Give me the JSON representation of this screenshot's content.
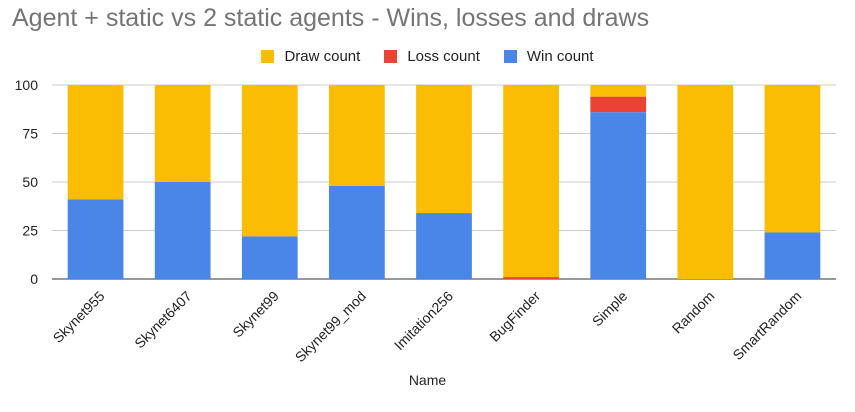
{
  "chart_data": {
    "type": "bar",
    "stacked": true,
    "title": "Agent + static vs 2 static agents - Wins, losses and draws",
    "xlabel": "Name",
    "ylabel": "",
    "ylim": [
      0,
      100
    ],
    "yticks": [
      0,
      25,
      50,
      75,
      100
    ],
    "categories": [
      "Skynet955",
      "Skynet6407",
      "Skynet99",
      "Skynet99_mod",
      "Imitation256",
      "BugFinder",
      "Simple",
      "Random",
      "SmartRandom"
    ],
    "series": [
      {
        "name": "Win count",
        "color": "#4a86e8",
        "values": [
          41,
          50,
          22,
          48,
          34,
          0,
          86,
          0,
          24
        ]
      },
      {
        "name": "Loss count",
        "color": "#ea4335",
        "values": [
          0,
          0,
          0,
          0,
          0,
          1,
          8,
          0,
          0
        ]
      },
      {
        "name": "Draw count",
        "color": "#fbbc04",
        "values": [
          59,
          50,
          78,
          52,
          66,
          99,
          6,
          100,
          76
        ]
      }
    ],
    "legend_order": [
      "Draw count",
      "Loss count",
      "Win count"
    ],
    "legend_position": "top",
    "grid": true
  }
}
